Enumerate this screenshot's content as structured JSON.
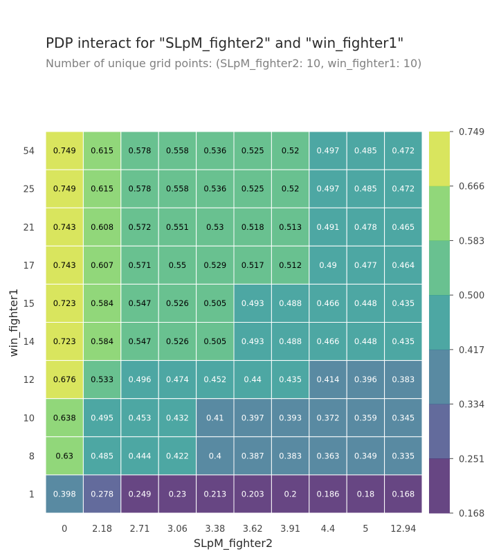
{
  "chart_data": {
    "type": "heatmap",
    "title": "PDP interact for \"SLpM_fighter2\" and \"win_fighter1\"",
    "subtitle": "Number of unique grid points: (SLpM_fighter2: 10, win_fighter1: 10)",
    "xlabel": "SLpM_fighter2",
    "ylabel": "win_fighter1",
    "x_categories": [
      "0",
      "2.18",
      "2.71",
      "3.06",
      "3.38",
      "3.62",
      "3.91",
      "4.4",
      "5",
      "12.94"
    ],
    "y_categories": [
      "54",
      "25",
      "21",
      "17",
      "15",
      "14",
      "12",
      "10",
      "8",
      "1"
    ],
    "values": [
      [
        0.749,
        0.615,
        0.578,
        0.558,
        0.536,
        0.525,
        0.52,
        0.497,
        0.485,
        0.472
      ],
      [
        0.749,
        0.615,
        0.578,
        0.558,
        0.536,
        0.525,
        0.52,
        0.497,
        0.485,
        0.472
      ],
      [
        0.743,
        0.608,
        0.572,
        0.551,
        0.53,
        0.518,
        0.513,
        0.491,
        0.478,
        0.465
      ],
      [
        0.743,
        0.607,
        0.571,
        0.55,
        0.529,
        0.517,
        0.512,
        0.49,
        0.477,
        0.464
      ],
      [
        0.723,
        0.584,
        0.547,
        0.526,
        0.505,
        0.493,
        0.488,
        0.466,
        0.448,
        0.435
      ],
      [
        0.723,
        0.584,
        0.547,
        0.526,
        0.505,
        0.493,
        0.488,
        0.466,
        0.448,
        0.435
      ],
      [
        0.676,
        0.533,
        0.496,
        0.474,
        0.452,
        0.44,
        0.435,
        0.414,
        0.396,
        0.383
      ],
      [
        0.638,
        0.495,
        0.453,
        0.432,
        0.41,
        0.397,
        0.393,
        0.372,
        0.359,
        0.345
      ],
      [
        0.63,
        0.485,
        0.444,
        0.422,
        0.4,
        0.387,
        0.383,
        0.363,
        0.349,
        0.335
      ],
      [
        0.398,
        0.278,
        0.249,
        0.23,
        0.213,
        0.203,
        0.2,
        0.186,
        0.18,
        0.168
      ]
    ],
    "colorbar_ticks": [
      "0.749",
      "0.666",
      "0.583",
      "0.500",
      "0.417",
      "0.334",
      "0.251",
      "0.168"
    ],
    "vmin": 0.168,
    "vmax": 0.749,
    "colorscale": [
      "#440154",
      "#3b528b",
      "#21918c",
      "#5ec962",
      "#fde725"
    ],
    "grid": true
  }
}
